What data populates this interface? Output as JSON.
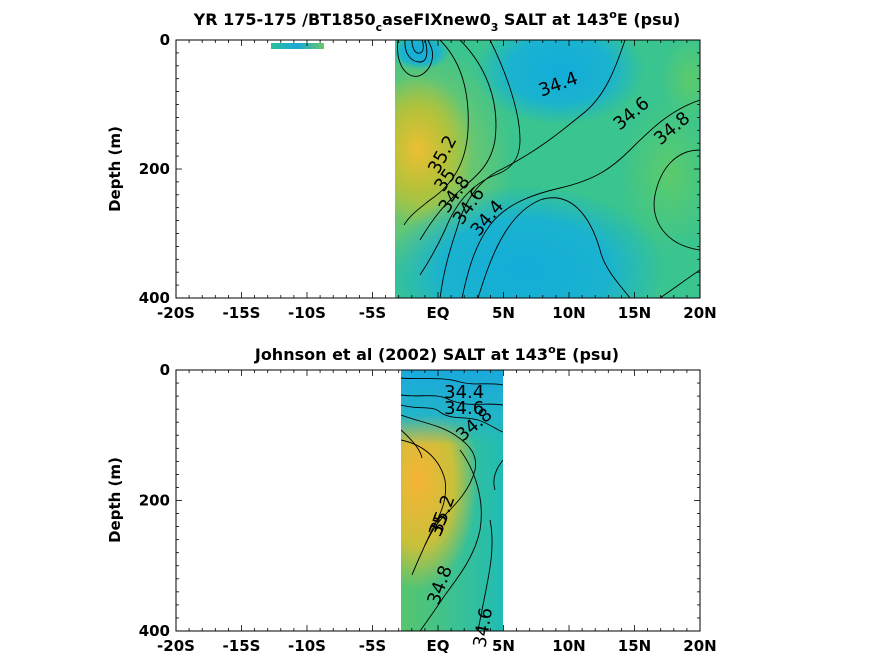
{
  "chart_data": [
    {
      "type": "heatmap",
      "title_parts": {
        "pre": "YR 175-175 /BT1850",
        "sub1": "c",
        "mid": "aseFIXnew0",
        "sub2": "3",
        "post1": " SALT at 143",
        "sup": "o",
        "post2": "E (psu)"
      },
      "ylabel": "Depth (m)",
      "xlim": [
        -20,
        20
      ],
      "ylim": [
        0,
        400
      ],
      "y_reversed": true,
      "xticks": [
        {
          "value": -20,
          "label": "-20S"
        },
        {
          "value": -15,
          "label": "-15S"
        },
        {
          "value": -10,
          "label": "-10S"
        },
        {
          "value": -5,
          "label": "-5S"
        },
        {
          "value": 0,
          "label": "EQ"
        },
        {
          "value": 5,
          "label": "5N"
        },
        {
          "value": 10,
          "label": "10N"
        },
        {
          "value": 15,
          "label": "15N"
        },
        {
          "value": 20,
          "label": "20N"
        }
      ],
      "yticks": [
        {
          "value": 0,
          "label": "0"
        },
        {
          "value": 200,
          "label": "200"
        },
        {
          "value": 400,
          "label": "400"
        }
      ],
      "data_extent_x": [
        -3,
        20
      ],
      "contour_labels": [
        {
          "text": "34.4",
          "x": 9.2,
          "y": 70,
          "angle": -20
        },
        {
          "text": "34.6",
          "x": 14.8,
          "y": 115,
          "angle": -40
        },
        {
          "text": "34.8",
          "x": 17.9,
          "y": 138,
          "angle": -40
        },
        {
          "text": "35.2",
          "x": 0.4,
          "y": 178,
          "angle": -62
        },
        {
          "text": "35",
          "x": 0.6,
          "y": 218,
          "angle": -55
        },
        {
          "text": "34.8",
          "x": 1.3,
          "y": 240,
          "angle": -55
        },
        {
          "text": "34.6",
          "x": 2.4,
          "y": 258,
          "angle": -55
        },
        {
          "text": "34.4",
          "x": 3.8,
          "y": 277,
          "angle": -50
        }
      ],
      "colors": {
        "high": "#f5b23a",
        "mid": "#3fbf7f",
        "low": "#14afd8"
      }
    },
    {
      "type": "heatmap",
      "title_parts": {
        "pre": "Johnson et al (2002) SALT at 143",
        "sup": "o",
        "post": "E (psu)"
      },
      "ylabel": "Depth (m)",
      "xlim": [
        -20,
        20
      ],
      "ylim": [
        0,
        400
      ],
      "y_reversed": true,
      "xticks": [
        {
          "value": -20,
          "label": "-20S"
        },
        {
          "value": -15,
          "label": "-15S"
        },
        {
          "value": -10,
          "label": "-10S"
        },
        {
          "value": -5,
          "label": "-5S"
        },
        {
          "value": 0,
          "label": "EQ"
        },
        {
          "value": 5,
          "label": "5N"
        },
        {
          "value": 10,
          "label": "10N"
        },
        {
          "value": 15,
          "label": "15N"
        },
        {
          "value": 20,
          "label": "20N"
        }
      ],
      "yticks": [
        {
          "value": 0,
          "label": "0"
        },
        {
          "value": 200,
          "label": "200"
        },
        {
          "value": 400,
          "label": "400"
        }
      ],
      "data_extent_x": [
        -2.5,
        5
      ],
      "contour_labels": [
        {
          "text": "34.4",
          "x": 2.0,
          "y": 35,
          "angle": 0
        },
        {
          "text": "34.6",
          "x": 2.0,
          "y": 60,
          "angle": 0
        },
        {
          "text": "34.8",
          "x": 2.8,
          "y": 85,
          "angle": -40
        },
        {
          "text": "35.2",
          "x": 0.4,
          "y": 222,
          "angle": -70
        },
        {
          "text": "35",
          "x": 0.1,
          "y": 238,
          "angle": -70
        },
        {
          "text": "34.8",
          "x": 0.2,
          "y": 330,
          "angle": -70
        },
        {
          "text": "34.6",
          "x": 3.5,
          "y": 395,
          "angle": -80
        }
      ],
      "colors": {
        "high": "#f5b23a",
        "mid": "#3fbf7f",
        "low": "#14afd8"
      }
    }
  ]
}
